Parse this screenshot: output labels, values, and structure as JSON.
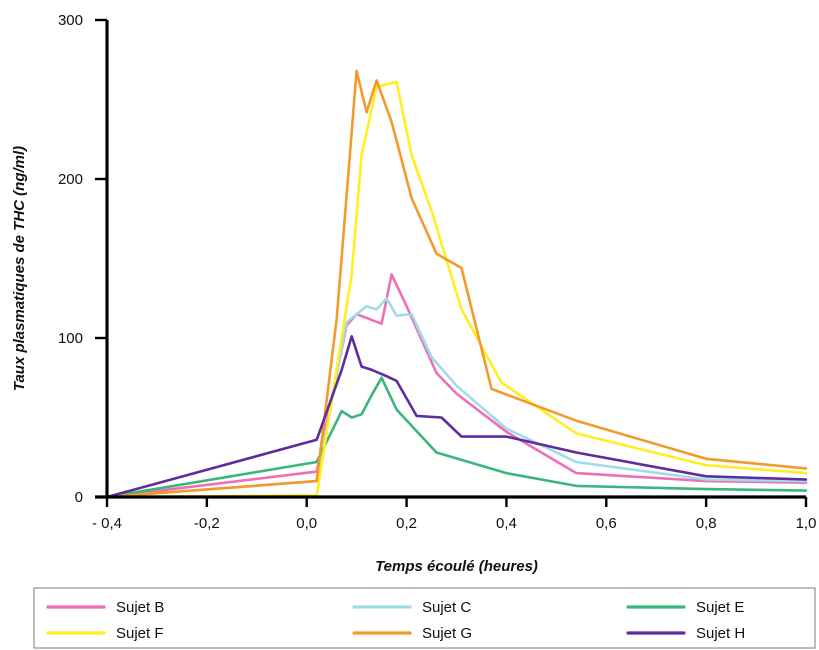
{
  "chart_data": {
    "type": "line",
    "title": "",
    "xlabel": "Temps écoulé (heures)",
    "ylabel": "Taux plasmatiques de THC (ng/ml)",
    "xlim": [
      -0.4,
      1.0
    ],
    "ylim": [
      0,
      300
    ],
    "x_ticks": [
      -0.4,
      -0.2,
      0.0,
      0.2,
      0.4,
      0.6,
      0.8,
      1.0
    ],
    "x_tick_labels": [
      "- 0,4",
      "-0,2",
      "0,0",
      "0,2",
      "0,4",
      "0,6",
      "0,8",
      "1,0"
    ],
    "y_ticks": [
      0,
      100,
      200,
      300
    ],
    "y_tick_labels": [
      "0",
      "100",
      "200",
      "300"
    ],
    "grid": false,
    "legend_position": "bottom",
    "series": [
      {
        "name": "Sujet B",
        "color": "#ee6fb5",
        "points": [
          [
            -0.4,
            0
          ],
          [
            0.02,
            16
          ],
          [
            0.08,
            108
          ],
          [
            0.1,
            115
          ],
          [
            0.15,
            109
          ],
          [
            0.17,
            140
          ],
          [
            0.2,
            120
          ],
          [
            0.26,
            78
          ],
          [
            0.3,
            65
          ],
          [
            0.4,
            41
          ],
          [
            0.54,
            15
          ],
          [
            0.8,
            10
          ],
          [
            1.0,
            9
          ]
        ]
      },
      {
        "name": "Sujet C",
        "color": "#9fdcea",
        "points": [
          [
            -0.4,
            0
          ],
          [
            0.02,
            10
          ],
          [
            0.08,
            110
          ],
          [
            0.12,
            120
          ],
          [
            0.14,
            118
          ],
          [
            0.16,
            125
          ],
          [
            0.18,
            114
          ],
          [
            0.21,
            115
          ],
          [
            0.25,
            88
          ],
          [
            0.3,
            70
          ],
          [
            0.4,
            43
          ],
          [
            0.54,
            22
          ],
          [
            0.8,
            11
          ],
          [
            1.0,
            10
          ]
        ]
      },
      {
        "name": "Sujet E",
        "color": "#3ab67d",
        "points": [
          [
            -0.4,
            0
          ],
          [
            0.02,
            22
          ],
          [
            0.07,
            54
          ],
          [
            0.09,
            50
          ],
          [
            0.11,
            52
          ],
          [
            0.13,
            64
          ],
          [
            0.15,
            75
          ],
          [
            0.18,
            55
          ],
          [
            0.26,
            28
          ],
          [
            0.4,
            15
          ],
          [
            0.54,
            7
          ],
          [
            0.8,
            5
          ],
          [
            1.0,
            4
          ]
        ]
      },
      {
        "name": "Sujet F",
        "color": "#ffee22",
        "points": [
          [
            -0.4,
            0
          ],
          [
            0.02,
            1
          ],
          [
            0.09,
            140
          ],
          [
            0.11,
            215
          ],
          [
            0.14,
            258
          ],
          [
            0.18,
            261
          ],
          [
            0.21,
            215
          ],
          [
            0.25,
            180
          ],
          [
            0.31,
            118
          ],
          [
            0.39,
            72
          ],
          [
            0.54,
            40
          ],
          [
            0.8,
            20
          ],
          [
            1.0,
            15
          ]
        ]
      },
      {
        "name": "Sujet G",
        "color": "#f39a2c",
        "points": [
          [
            -0.4,
            0
          ],
          [
            0.02,
            10
          ],
          [
            0.06,
            112
          ],
          [
            0.1,
            268
          ],
          [
            0.12,
            242
          ],
          [
            0.14,
            262
          ],
          [
            0.17,
            236
          ],
          [
            0.21,
            188
          ],
          [
            0.26,
            153
          ],
          [
            0.31,
            144
          ],
          [
            0.37,
            68
          ],
          [
            0.54,
            48
          ],
          [
            0.8,
            24
          ],
          [
            1.0,
            18
          ]
        ]
      },
      {
        "name": "Sujet H",
        "color": "#5e2c9e",
        "points": [
          [
            -0.4,
            0
          ],
          [
            0.02,
            36
          ],
          [
            0.07,
            80
          ],
          [
            0.09,
            101
          ],
          [
            0.11,
            82
          ],
          [
            0.13,
            80
          ],
          [
            0.16,
            76
          ],
          [
            0.18,
            73
          ],
          [
            0.22,
            51
          ],
          [
            0.27,
            50
          ],
          [
            0.31,
            38
          ],
          [
            0.4,
            38
          ],
          [
            0.54,
            28
          ],
          [
            0.8,
            13
          ],
          [
            1.0,
            11
          ]
        ]
      }
    ]
  }
}
